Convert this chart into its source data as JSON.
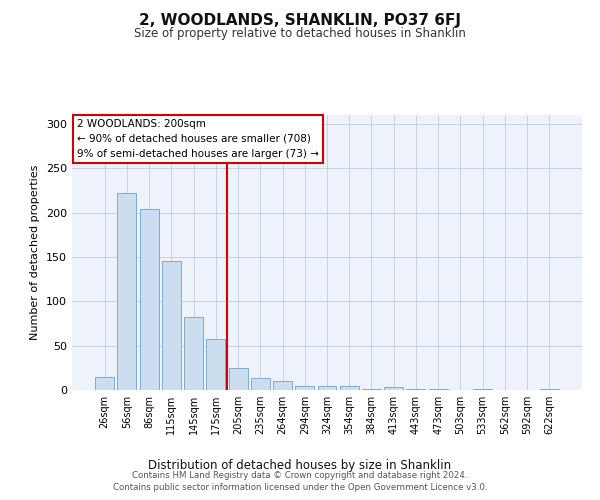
{
  "title": "2, WOODLANDS, SHANKLIN, PO37 6FJ",
  "subtitle": "Size of property relative to detached houses in Shanklin",
  "xlabel": "Distribution of detached houses by size in Shanklin",
  "ylabel": "Number of detached properties",
  "bar_labels": [
    "26sqm",
    "56sqm",
    "86sqm",
    "115sqm",
    "145sqm",
    "175sqm",
    "205sqm",
    "235sqm",
    "264sqm",
    "294sqm",
    "324sqm",
    "354sqm",
    "384sqm",
    "413sqm",
    "443sqm",
    "473sqm",
    "503sqm",
    "533sqm",
    "562sqm",
    "592sqm",
    "622sqm"
  ],
  "bar_heights": [
    15,
    222,
    204,
    145,
    82,
    57,
    25,
    13,
    10,
    5,
    4,
    4,
    1,
    3,
    1,
    1,
    0,
    1,
    0,
    0,
    1
  ],
  "bar_color": "#cdddf0",
  "bar_edge_color": "#7aadd8",
  "vline_x_idx": 6,
  "vline_color": "#cc0000",
  "annotation_text": "2 WOODLANDS: 200sqm\n← 90% of detached houses are smaller (708)\n9% of semi-detached houses are larger (73) →",
  "annotation_box_color": "#ffffff",
  "annotation_box_edge": "#cc0000",
  "ylim": [
    0,
    310
  ],
  "yticks": [
    0,
    50,
    100,
    150,
    200,
    250,
    300
  ],
  "background_color": "#eef2fa",
  "footer_line1": "Contains HM Land Registry data © Crown copyright and database right 2024.",
  "footer_line2": "Contains public sector information licensed under the Open Government Licence v3.0."
}
